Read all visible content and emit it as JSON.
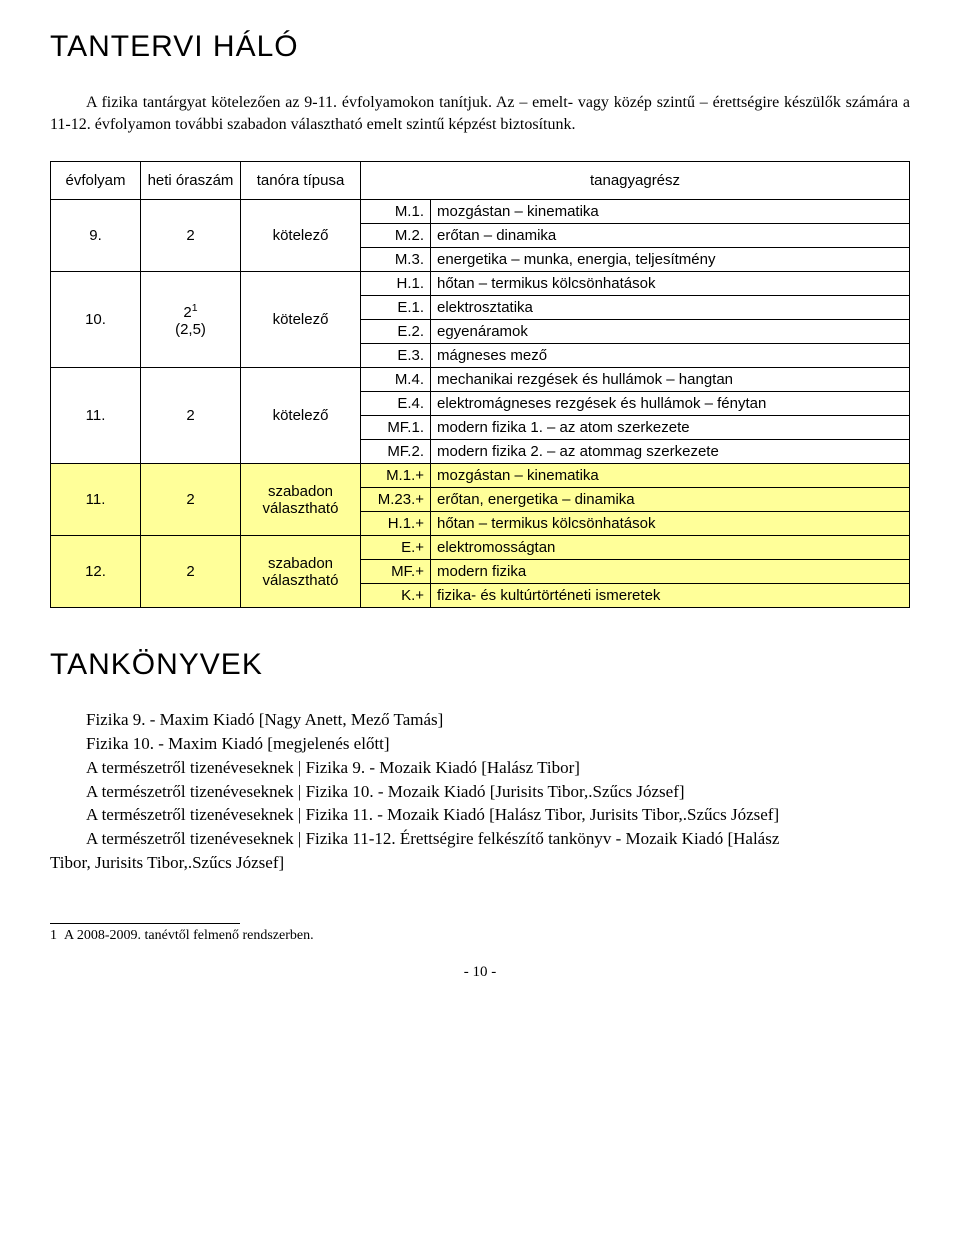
{
  "heading1": "TANTERVI HÁLÓ",
  "intro": "A fizika tantárgyat kötelezően az 9-11. évfolyamokon tanítjuk. Az – emelt- vagy közép szintű – érettségire készülők számára a 11-12. évfolyamon további szabadon választható emelt szintű képzést biztosítunk.",
  "table": {
    "headers": {
      "col1": "évfolyam",
      "col2": "heti óraszám",
      "col3": "tanóra típusa",
      "col45": "tanagyagrész"
    },
    "groups": [
      {
        "grade": "9.",
        "hours": "2",
        "type": "kötelező",
        "highlight": false,
        "topics": [
          {
            "code": "M.1.",
            "name": "mozgástan – kinematika"
          },
          {
            "code": "M.2.",
            "name": "erőtan – dinamika"
          },
          {
            "code": "M.3.",
            "name": "energetika – munka, energia, teljesítmény"
          }
        ]
      },
      {
        "grade": "10.",
        "hours_html": "2<span class=\"sup\">1</span><br>(2,5)",
        "type": "kötelező",
        "highlight": false,
        "topics": [
          {
            "code": "H.1.",
            "name": "hőtan – termikus kölcsönhatások"
          },
          {
            "code": "E.1.",
            "name": "elektrosztatika"
          },
          {
            "code": "E.2.",
            "name": "egyenáramok"
          },
          {
            "code": "E.3.",
            "name": "mágneses mező"
          }
        ]
      },
      {
        "grade": "11.",
        "hours": "2",
        "type": "kötelező",
        "highlight": false,
        "topics": [
          {
            "code": "M.4.",
            "name": "mechanikai rezgések és hullámok – hangtan"
          },
          {
            "code": "E.4.",
            "name": "elektromágneses rezgések és hullámok – fénytan"
          },
          {
            "code": "MF.1.",
            "name": "modern fizika 1. – az atom szerkezete"
          },
          {
            "code": "MF.2.",
            "name": "modern fizika 2. – az atommag szerkezete"
          }
        ]
      },
      {
        "grade": "11.",
        "hours": "2",
        "type": "szabadon választható",
        "highlight": true,
        "topics": [
          {
            "code": "M.1.+",
            "name": "mozgástan – kinematika"
          },
          {
            "code": "M.23.+",
            "name": "erőtan, energetika – dinamika"
          },
          {
            "code": "H.1.+",
            "name": "hőtan – termikus kölcsönhatások"
          }
        ]
      },
      {
        "grade": "12.",
        "hours": "2",
        "type": "szabadon választható",
        "highlight": true,
        "topics": [
          {
            "code": "E.+",
            "name": "elektromosságtan"
          },
          {
            "code": "MF.+",
            "name": "modern fizika"
          },
          {
            "code": "K.+",
            "name": "fizika- és kultúrtörténeti ismeretek"
          }
        ]
      }
    ]
  },
  "heading2": "TANKÖNYVEK",
  "books": [
    "Fizika 9. - Maxim Kiadó [Nagy Anett, Mező Tamás]",
    "Fizika 10. - Maxim Kiadó [megjelenés előtt]",
    "A természetről tizenéveseknek | Fizika 9. - Mozaik Kiadó [Halász Tibor]",
    "A természetről tizenéveseknek | Fizika 10. - Mozaik Kiadó [Jurisits Tibor,.Szűcs József]",
    "A természetről tizenéveseknek | Fizika 11. - Mozaik Kiadó [Halász Tibor, Jurisits Tibor,.Szűcs József]"
  ],
  "book_multi_pre": "A természetről tizenéveseknek | Fizika 11-12. Érettségire felkészítő tankönyv - Mozaik Kiadó [Halász",
  "book_multi_post": "Tibor, Jurisits Tibor,.Szűcs József]",
  "footnote_label": "1",
  "footnote_text": "A 2008-2009. tanévtől felmenő rendszerben.",
  "page_number": "- 10 -"
}
